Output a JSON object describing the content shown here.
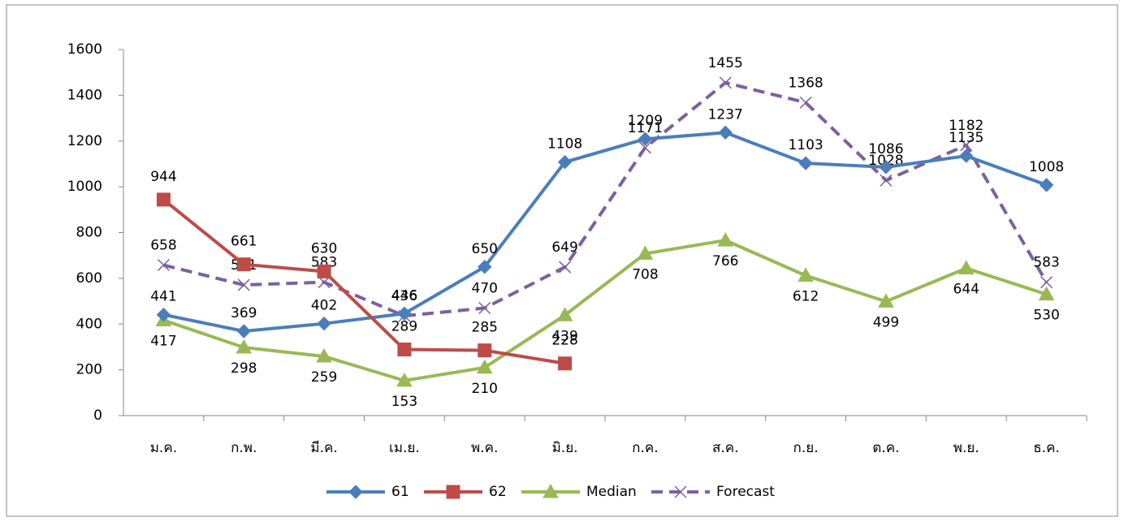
{
  "chart_data": {
    "type": "line",
    "categories": [
      "ม.ค.",
      "ก.พ.",
      "มี.ค.",
      "เม.ย.",
      "พ.ค.",
      "มิ.ย.",
      "ก.ค.",
      "ส.ค.",
      "ก.ย.",
      "ต.ค.",
      "พ.ย.",
      "ธ.ค."
    ],
    "series": [
      {
        "name": "61",
        "color": "#4a7ebb",
        "marker": "diamond",
        "values": [
          441,
          369,
          402,
          446,
          650,
          1108,
          1209,
          1237,
          1103,
          1086,
          1135,
          1008
        ]
      },
      {
        "name": "62",
        "color": "#be4b48",
        "marker": "square",
        "values": [
          944,
          661,
          630,
          289,
          285,
          228,
          null,
          null,
          null,
          null,
          null,
          null
        ]
      },
      {
        "name": "Median",
        "color": "#98b954",
        "marker": "triangle",
        "values": [
          417,
          298,
          259,
          153,
          210,
          439,
          708,
          766,
          612,
          499,
          644,
          530
        ]
      },
      {
        "name": "Forecast",
        "color": "#7d5fa0",
        "marker": "x",
        "dashed": true,
        "values": [
          658,
          571,
          583,
          436,
          470,
          649,
          1171,
          1455,
          1368,
          1028,
          1182,
          583
        ]
      }
    ],
    "ylim": [
      0,
      1600
    ],
    "yticks": [
      0,
      200,
      400,
      600,
      800,
      1000,
      1200,
      1400,
      1600
    ],
    "grid": false,
    "legend": "bottom"
  }
}
